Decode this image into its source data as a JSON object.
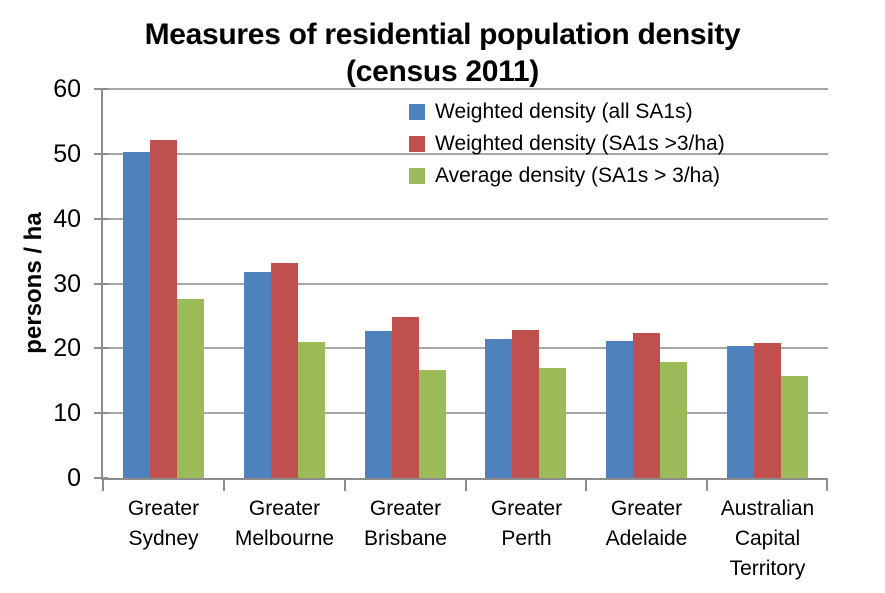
{
  "chart_data": {
    "type": "bar",
    "title": "Measures of residential population density",
    "subtitle": "(census 2011)",
    "ylabel": "persons / ha",
    "xlabel": "",
    "ylim": [
      0,
      60
    ],
    "yticks": [
      0,
      10,
      20,
      30,
      40,
      50,
      60
    ],
    "grid": true,
    "legend_position": "top-center-inside",
    "categories": [
      "Greater Sydney",
      "Greater Melbourne",
      "Greater Brisbane",
      "Greater Perth",
      "Greater Adelaide",
      "Australian Capital Territory"
    ],
    "series": [
      {
        "name": "Weighted density (all SA1s)",
        "color": "#4F81BD",
        "values": [
          50.3,
          31.7,
          22.6,
          21.5,
          21.2,
          20.4
        ]
      },
      {
        "name": "Weighted density (SA1s >3/ha)",
        "color": "#C0504D",
        "values": [
          52.1,
          33.2,
          24.8,
          22.8,
          22.3,
          20.8
        ]
      },
      {
        "name": "Average density (SA1s > 3/ha)",
        "color": "#9BBB59",
        "values": [
          27.6,
          21.0,
          16.6,
          17.0,
          17.9,
          15.8
        ]
      }
    ],
    "colors": {
      "gridline": "#A6A6A6",
      "axis": "#8C8C8C",
      "text": "#1A1A1A",
      "background": "#FFFFFF"
    }
  }
}
